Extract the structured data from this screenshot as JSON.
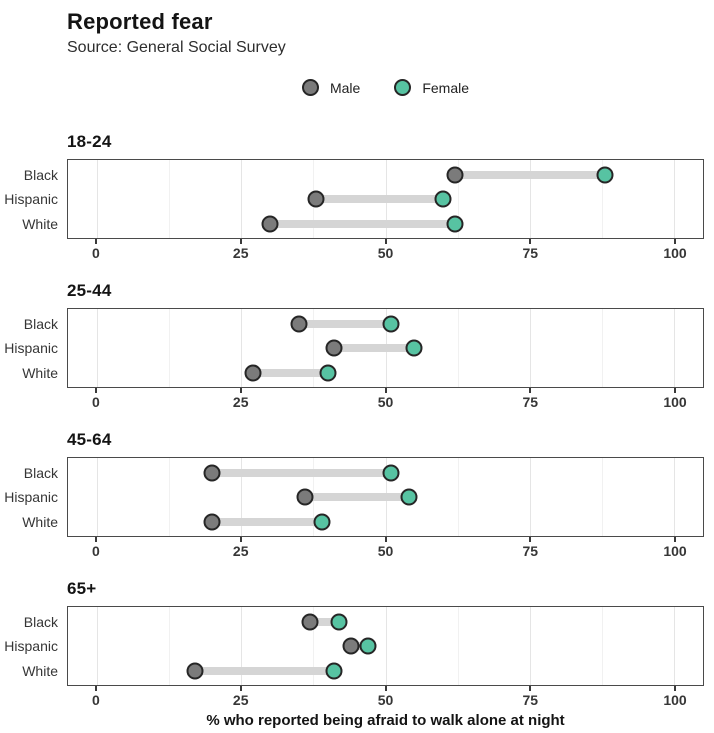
{
  "header": {
    "title": "Reported fear",
    "subtitle": "Source: General Social Survey"
  },
  "legend": {
    "items": [
      {
        "label": "Male",
        "color": "#7b7b7b"
      },
      {
        "label": "Female",
        "color": "#57c3a2"
      }
    ]
  },
  "chart_data": {
    "type": "dumbbell",
    "title": "Reported fear",
    "subtitle": "Source: General Social Survey",
    "xlabel": "% who reported being afraid to walk alone at night",
    "ylabel": "",
    "x_domain": [
      -5,
      105
    ],
    "x_ticks": [
      0,
      25,
      50,
      75,
      100
    ],
    "gridlines": {
      "major": [
        0,
        25,
        50,
        75,
        100
      ],
      "minor": [
        12.5,
        37.5,
        62.5,
        87.5
      ]
    },
    "grid": "on",
    "legend_position": "top-center",
    "categories": [
      "Black",
      "Hispanic",
      "White"
    ],
    "series_names": [
      "Male",
      "Female"
    ],
    "row_positions_pct": [
      18.75,
      50,
      81.25
    ],
    "facets": [
      {
        "title": "18-24",
        "rows": [
          {
            "label": "Black",
            "male": 62,
            "female": 88
          },
          {
            "label": "Hispanic",
            "male": 38,
            "female": 60
          },
          {
            "label": "White",
            "male": 30,
            "female": 62
          }
        ]
      },
      {
        "title": "25-44",
        "rows": [
          {
            "label": "Black",
            "male": 35,
            "female": 51
          },
          {
            "label": "Hispanic",
            "male": 41,
            "female": 55
          },
          {
            "label": "White",
            "male": 27,
            "female": 40
          }
        ]
      },
      {
        "title": "45-64",
        "rows": [
          {
            "label": "Black",
            "male": 20,
            "female": 51
          },
          {
            "label": "Hispanic",
            "male": 36,
            "female": 54
          },
          {
            "label": "White",
            "male": 20,
            "female": 39
          }
        ]
      },
      {
        "title": "65+",
        "rows": [
          {
            "label": "Black",
            "male": 37,
            "female": 42
          },
          {
            "label": "Hispanic",
            "male": 44,
            "female": 47
          },
          {
            "label": "White",
            "male": 17,
            "female": 41
          }
        ]
      }
    ],
    "colors": {
      "male": "#7b7b7b",
      "female": "#57c3a2",
      "point_stroke": "#262626",
      "connector": "#d5d5d5",
      "panel_border": "#4a4a4a"
    }
  }
}
